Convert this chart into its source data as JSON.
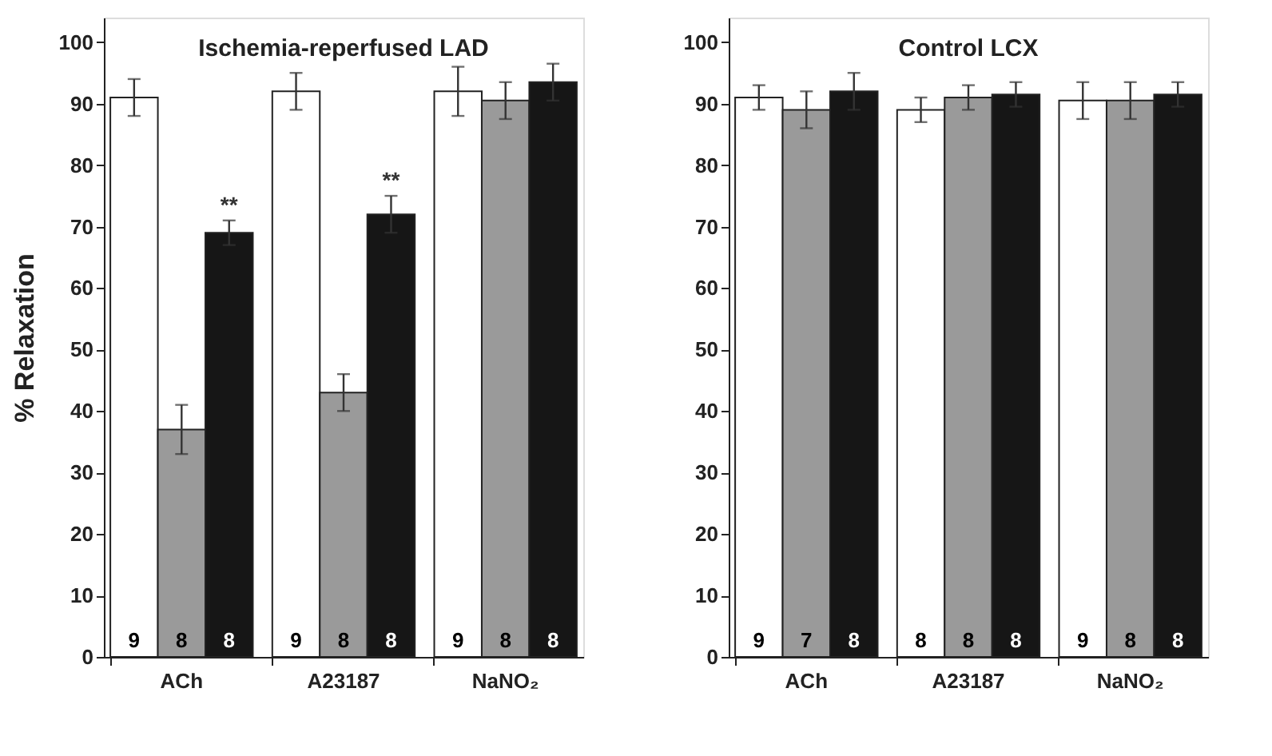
{
  "chart_data": [
    {
      "type": "bar",
      "title": "Ischemia-reperfused LAD",
      "ylabel": "% Relaxation",
      "categories": [
        "ACh",
        "A23187",
        "NaNO₂"
      ],
      "ylim": [
        0,
        104
      ],
      "yticks": [
        0,
        10,
        20,
        30,
        40,
        50,
        60,
        70,
        80,
        90,
        100
      ],
      "series": [
        {
          "color": "#ffffff",
          "values": [
            91,
            92,
            92
          ],
          "errors": [
            3,
            3,
            4
          ]
        },
        {
          "color": "#9a9a9a",
          "values": [
            37,
            43,
            90.5
          ],
          "errors": [
            4,
            3,
            3
          ]
        },
        {
          "color": "#161616",
          "values": [
            69,
            72,
            93.5
          ],
          "errors": [
            2,
            3,
            3
          ]
        }
      ],
      "annotations": [
        "9",
        "8",
        "8",
        "9",
        "8",
        "8",
        "9",
        "8",
        "8",
        "**",
        "**"
      ]
    },
    {
      "type": "bar",
      "title": "Control LCX",
      "categories": [
        "ACh",
        "A23187",
        "NaNO₂"
      ],
      "ylim": [
        0,
        104
      ],
      "yticks": [
        0,
        10,
        20,
        30,
        40,
        50,
        60,
        70,
        80,
        90,
        100
      ],
      "series": [
        {
          "color": "#ffffff",
          "values": [
            91,
            89,
            90.5
          ],
          "errors": [
            2,
            2,
            3
          ]
        },
        {
          "color": "#9a9a9a",
          "values": [
            89,
            91,
            90.5
          ],
          "errors": [
            3,
            2,
            3
          ]
        },
        {
          "color": "#161616",
          "values": [
            92,
            91.5,
            91.5
          ],
          "errors": [
            3,
            2,
            2
          ]
        }
      ],
      "annotations": [
        "9",
        "7",
        "8",
        "8",
        "8",
        "8",
        "9",
        "8",
        "8"
      ]
    }
  ]
}
